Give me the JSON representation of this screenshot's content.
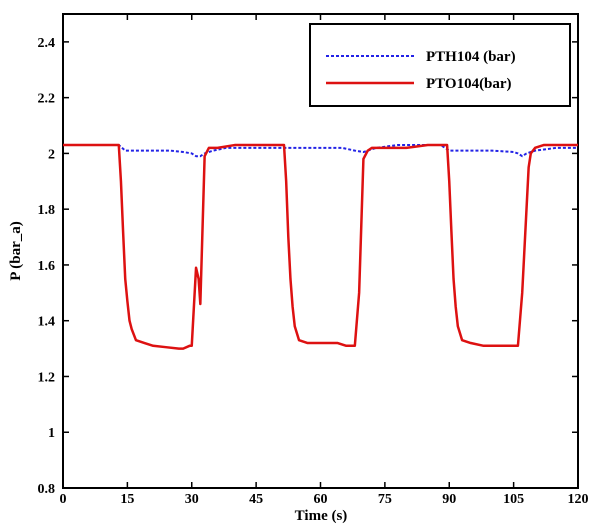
{
  "chart_data": {
    "type": "line",
    "xlabel": "Time (s)",
    "ylabel": "P (bar_a)",
    "xlim": [
      0,
      120
    ],
    "ylim": [
      0.8,
      2.5
    ],
    "x_ticks": [
      0,
      15,
      30,
      45,
      60,
      75,
      90,
      105,
      120
    ],
    "y_ticks": [
      0.8,
      1,
      1.2,
      1.4,
      1.6,
      1.8,
      2,
      2.2,
      2.4
    ],
    "x_tick_labels": [
      "0",
      "15",
      "30",
      "45",
      "60",
      "75",
      "90",
      "105",
      "120"
    ],
    "y_tick_labels": [
      "0.8",
      "1",
      "1.2",
      "1.4",
      "1.6",
      "1.8",
      "2",
      "2.2",
      "2.4"
    ],
    "grid": false,
    "legend_position": "top-right",
    "series": [
      {
        "name": "PTH104 (bar)",
        "color": "#2323e6",
        "style": "dotted",
        "x": [
          0,
          13,
          14.5,
          16,
          20,
          25,
          28,
          30,
          31,
          32,
          33,
          35,
          38,
          45,
          50,
          53,
          60,
          65,
          68,
          70,
          71,
          73,
          78,
          83,
          85,
          88,
          90,
          95,
          100,
          105,
          106,
          107,
          108,
          110,
          115,
          120
        ],
        "y": [
          2.03,
          2.03,
          2.01,
          2.01,
          2.01,
          2.01,
          2.005,
          2.0,
          1.99,
          1.99,
          2.0,
          2.01,
          2.02,
          2.02,
          2.02,
          2.02,
          2.02,
          2.02,
          2.01,
          2.005,
          2.01,
          2.02,
          2.03,
          2.03,
          2.03,
          2.03,
          2.01,
          2.01,
          2.01,
          2.005,
          2.0,
          1.99,
          2.0,
          2.01,
          2.02,
          2.02
        ]
      },
      {
        "name": "PTO104(bar)",
        "color": "#dd1111",
        "style": "solid",
        "x": [
          0,
          13,
          13.5,
          14,
          14.5,
          15,
          15.5,
          16,
          17,
          19,
          21,
          24,
          27,
          28,
          29.5,
          30,
          31,
          31.6,
          32,
          33,
          34,
          36,
          40,
          45,
          50,
          51.5,
          52,
          52.5,
          53,
          53.5,
          54,
          55,
          57,
          60,
          64,
          66,
          68,
          69,
          70,
          71,
          72,
          75,
          80,
          85,
          88,
          89.5,
          90,
          90.5,
          91,
          91.5,
          92,
          93,
          95,
          98,
          100,
          103,
          106,
          107,
          108,
          108.5,
          109,
          110,
          112,
          115,
          120
        ],
        "y": [
          2.03,
          2.03,
          1.9,
          1.72,
          1.55,
          1.47,
          1.4,
          1.37,
          1.33,
          1.32,
          1.31,
          1.305,
          1.3,
          1.3,
          1.31,
          1.31,
          1.59,
          1.55,
          1.46,
          1.99,
          2.02,
          2.02,
          2.03,
          2.03,
          2.03,
          2.03,
          1.9,
          1.7,
          1.55,
          1.45,
          1.38,
          1.33,
          1.32,
          1.32,
          1.32,
          1.31,
          1.31,
          1.5,
          1.98,
          2.01,
          2.02,
          2.02,
          2.02,
          2.03,
          2.03,
          2.03,
          1.9,
          1.72,
          1.55,
          1.45,
          1.38,
          1.33,
          1.32,
          1.31,
          1.31,
          1.31,
          1.31,
          1.5,
          1.8,
          1.95,
          2.0,
          2.02,
          2.03,
          2.03,
          2.03
        ]
      }
    ]
  }
}
